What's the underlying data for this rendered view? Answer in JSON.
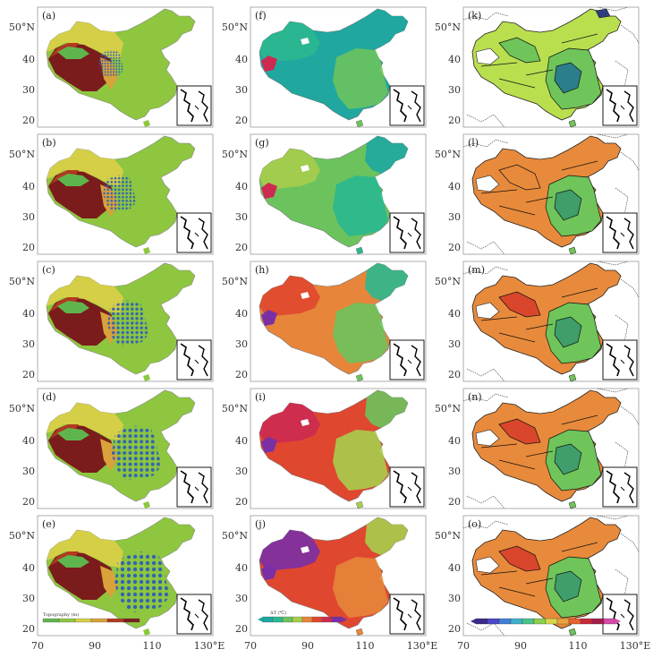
{
  "panels": [
    {
      "label": "(a)",
      "col": 0,
      "row": 0,
      "kind": "topo"
    },
    {
      "label": "(b)",
      "col": 0,
      "row": 1,
      "kind": "topo"
    },
    {
      "label": "(c)",
      "col": 0,
      "row": 2,
      "kind": "topo"
    },
    {
      "label": "(d)",
      "col": 0,
      "row": 3,
      "kind": "topo"
    },
    {
      "label": "(e)",
      "col": 0,
      "row": 4,
      "kind": "topo"
    },
    {
      "label": "(f)",
      "col": 1,
      "row": 0,
      "kind": "temp"
    },
    {
      "label": "(g)",
      "col": 1,
      "row": 1,
      "kind": "temp"
    },
    {
      "label": "(h)",
      "col": 1,
      "row": 2,
      "kind": "temp"
    },
    {
      "label": "(i)",
      "col": 1,
      "row": 3,
      "kind": "temp"
    },
    {
      "label": "(j)",
      "col": 1,
      "row": 4,
      "kind": "temp"
    },
    {
      "label": "(k)",
      "col": 2,
      "row": 0,
      "kind": "contour"
    },
    {
      "label": "(l)",
      "col": 2,
      "row": 1,
      "kind": "contour"
    },
    {
      "label": "(m)",
      "col": 2,
      "row": 2,
      "kind": "contour"
    },
    {
      "label": "(n)",
      "col": 2,
      "row": 3,
      "kind": "contour"
    },
    {
      "label": "(o)",
      "col": 2,
      "row": 4,
      "kind": "contour"
    }
  ],
  "lat_ticks": [
    "50°N",
    "40",
    "30",
    "20"
  ],
  "lon_ticks": [
    "70",
    "90",
    "110",
    "130°E"
  ],
  "colorbars": {
    "topo_label": "Topography (m)",
    "temp_label": "ΔT (℃)"
  },
  "colors": {
    "topo": [
      "#7a1c1c",
      "#b23a1e",
      "#d9a23a",
      "#d4cf47",
      "#8ec63f",
      "#5fb54d"
    ],
    "temp": [
      "#1fa7a0",
      "#2ab88f",
      "#6cc35d",
      "#a7cd4d",
      "#e7853a",
      "#e0472f",
      "#cc2a52",
      "#7b2fa6"
    ],
    "contour": [
      "#b9df4f",
      "#6fc45a",
      "#3f9e6b",
      "#2a7f8a",
      "#e88a3b",
      "#d9462c"
    ],
    "station": "#2e5fb8"
  }
}
